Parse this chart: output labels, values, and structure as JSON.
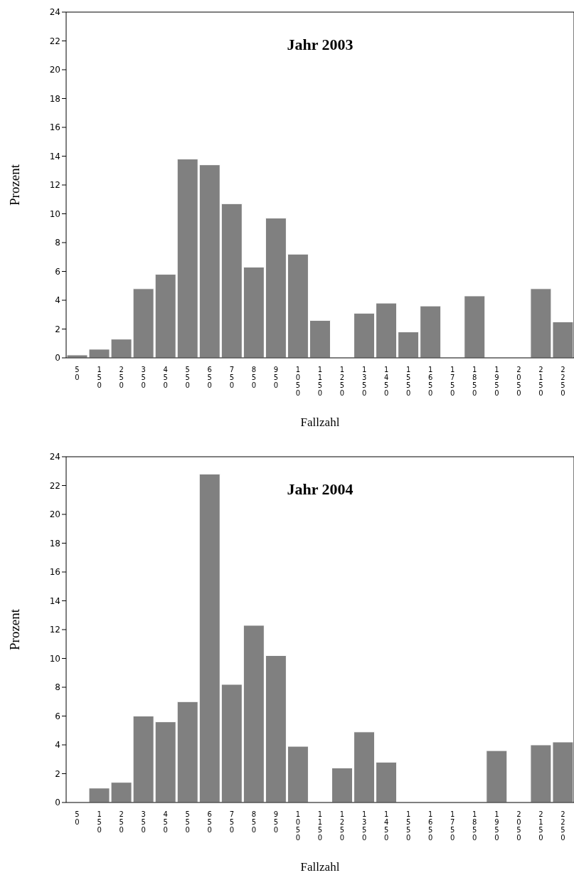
{
  "chart_data": [
    {
      "type": "bar",
      "title": "Jahr 2003",
      "xlabel": "Fallzahl",
      "ylabel": "Prozent",
      "categories": [
        "50",
        "150",
        "250",
        "350",
        "450",
        "550",
        "650",
        "750",
        "850",
        "950",
        "1050",
        "1150",
        "1250",
        "1350",
        "1450",
        "1550",
        "1650",
        "1750",
        "1850",
        "1950",
        "2050",
        "2150",
        "2250"
      ],
      "values": [
        0.2,
        0.6,
        1.3,
        4.8,
        5.8,
        13.8,
        13.4,
        10.7,
        6.3,
        9.7,
        7.2,
        2.6,
        0,
        3.1,
        3.8,
        1.8,
        3.6,
        0,
        4.3,
        0,
        0,
        4.8,
        2.5
      ],
      "color": "#808080",
      "ylim": [
        0,
        24
      ],
      "yticks": [
        0,
        2,
        4,
        6,
        8,
        10,
        12,
        14,
        16,
        18,
        20,
        22,
        24
      ],
      "grid": false,
      "legend": false
    },
    {
      "type": "bar",
      "title": "Jahr 2004",
      "xlabel": "Fallzahl",
      "ylabel": "Prozent",
      "categories": [
        "50",
        "150",
        "250",
        "350",
        "450",
        "550",
        "650",
        "750",
        "850",
        "950",
        "1050",
        "1150",
        "1250",
        "1350",
        "1450",
        "1550",
        "1650",
        "1750",
        "1850",
        "1950",
        "2050",
        "2150",
        "2250"
      ],
      "values": [
        0,
        1.0,
        1.4,
        6.0,
        5.6,
        7.0,
        22.8,
        8.2,
        12.3,
        10.2,
        3.9,
        0,
        2.4,
        4.9,
        2.8,
        0,
        0,
        0,
        0,
        3.6,
        0,
        4.0,
        4.2
      ],
      "color": "#808080",
      "ylim": [
        0,
        24
      ],
      "yticks": [
        0,
        2,
        4,
        6,
        8,
        10,
        12,
        14,
        16,
        18,
        20,
        22,
        24
      ],
      "grid": false,
      "legend": false
    }
  ]
}
